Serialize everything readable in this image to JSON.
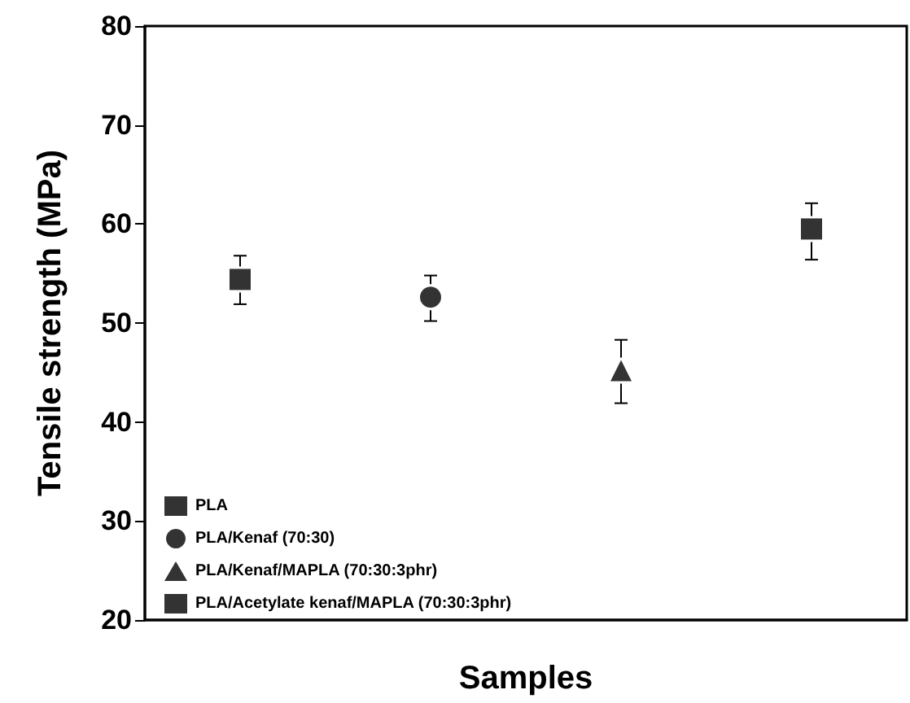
{
  "chart_data": {
    "type": "scatter",
    "xlabel": "Samples",
    "ylabel": "Tensile strength (MPa)",
    "categories": [
      null,
      null,
      null,
      null
    ],
    "ylim": [
      20,
      80
    ],
    "yticks": [
      20,
      30,
      40,
      50,
      60,
      70,
      80
    ],
    "grid": false,
    "legend": "bottom left",
    "series": [
      {
        "name": "PLA",
        "color": "#000000",
        "marker": "square",
        "values": [
          54.4,
          null,
          null,
          null
        ],
        "errors": [
          [
            51.9,
            56.8
          ],
          null,
          null,
          null
        ]
      },
      {
        "name": "PLA/Kenaf (70:30)",
        "color": "#000000",
        "marker": "circle",
        "values": [
          null,
          52.6,
          null,
          null
        ],
        "errors": [
          null,
          [
            50.2,
            54.8
          ],
          null,
          null
        ]
      },
      {
        "name": "PLA/Kenaf/MAPLA (70:30:3phr)",
        "color": "#000000",
        "marker": "triangle",
        "values": [
          null,
          null,
          45.2,
          null
        ],
        "errors": [
          null,
          null,
          [
            41.9,
            48.3
          ],
          null
        ]
      },
      {
        "name": "PLA/Acetylate kenaf/MAPLA (70:30:3phr)",
        "color": "#000000",
        "marker": "square",
        "values": [
          null,
          null,
          null,
          59.5
        ],
        "errors": [
          null,
          null,
          null,
          [
            56.4,
            62.1
          ]
        ]
      }
    ]
  }
}
